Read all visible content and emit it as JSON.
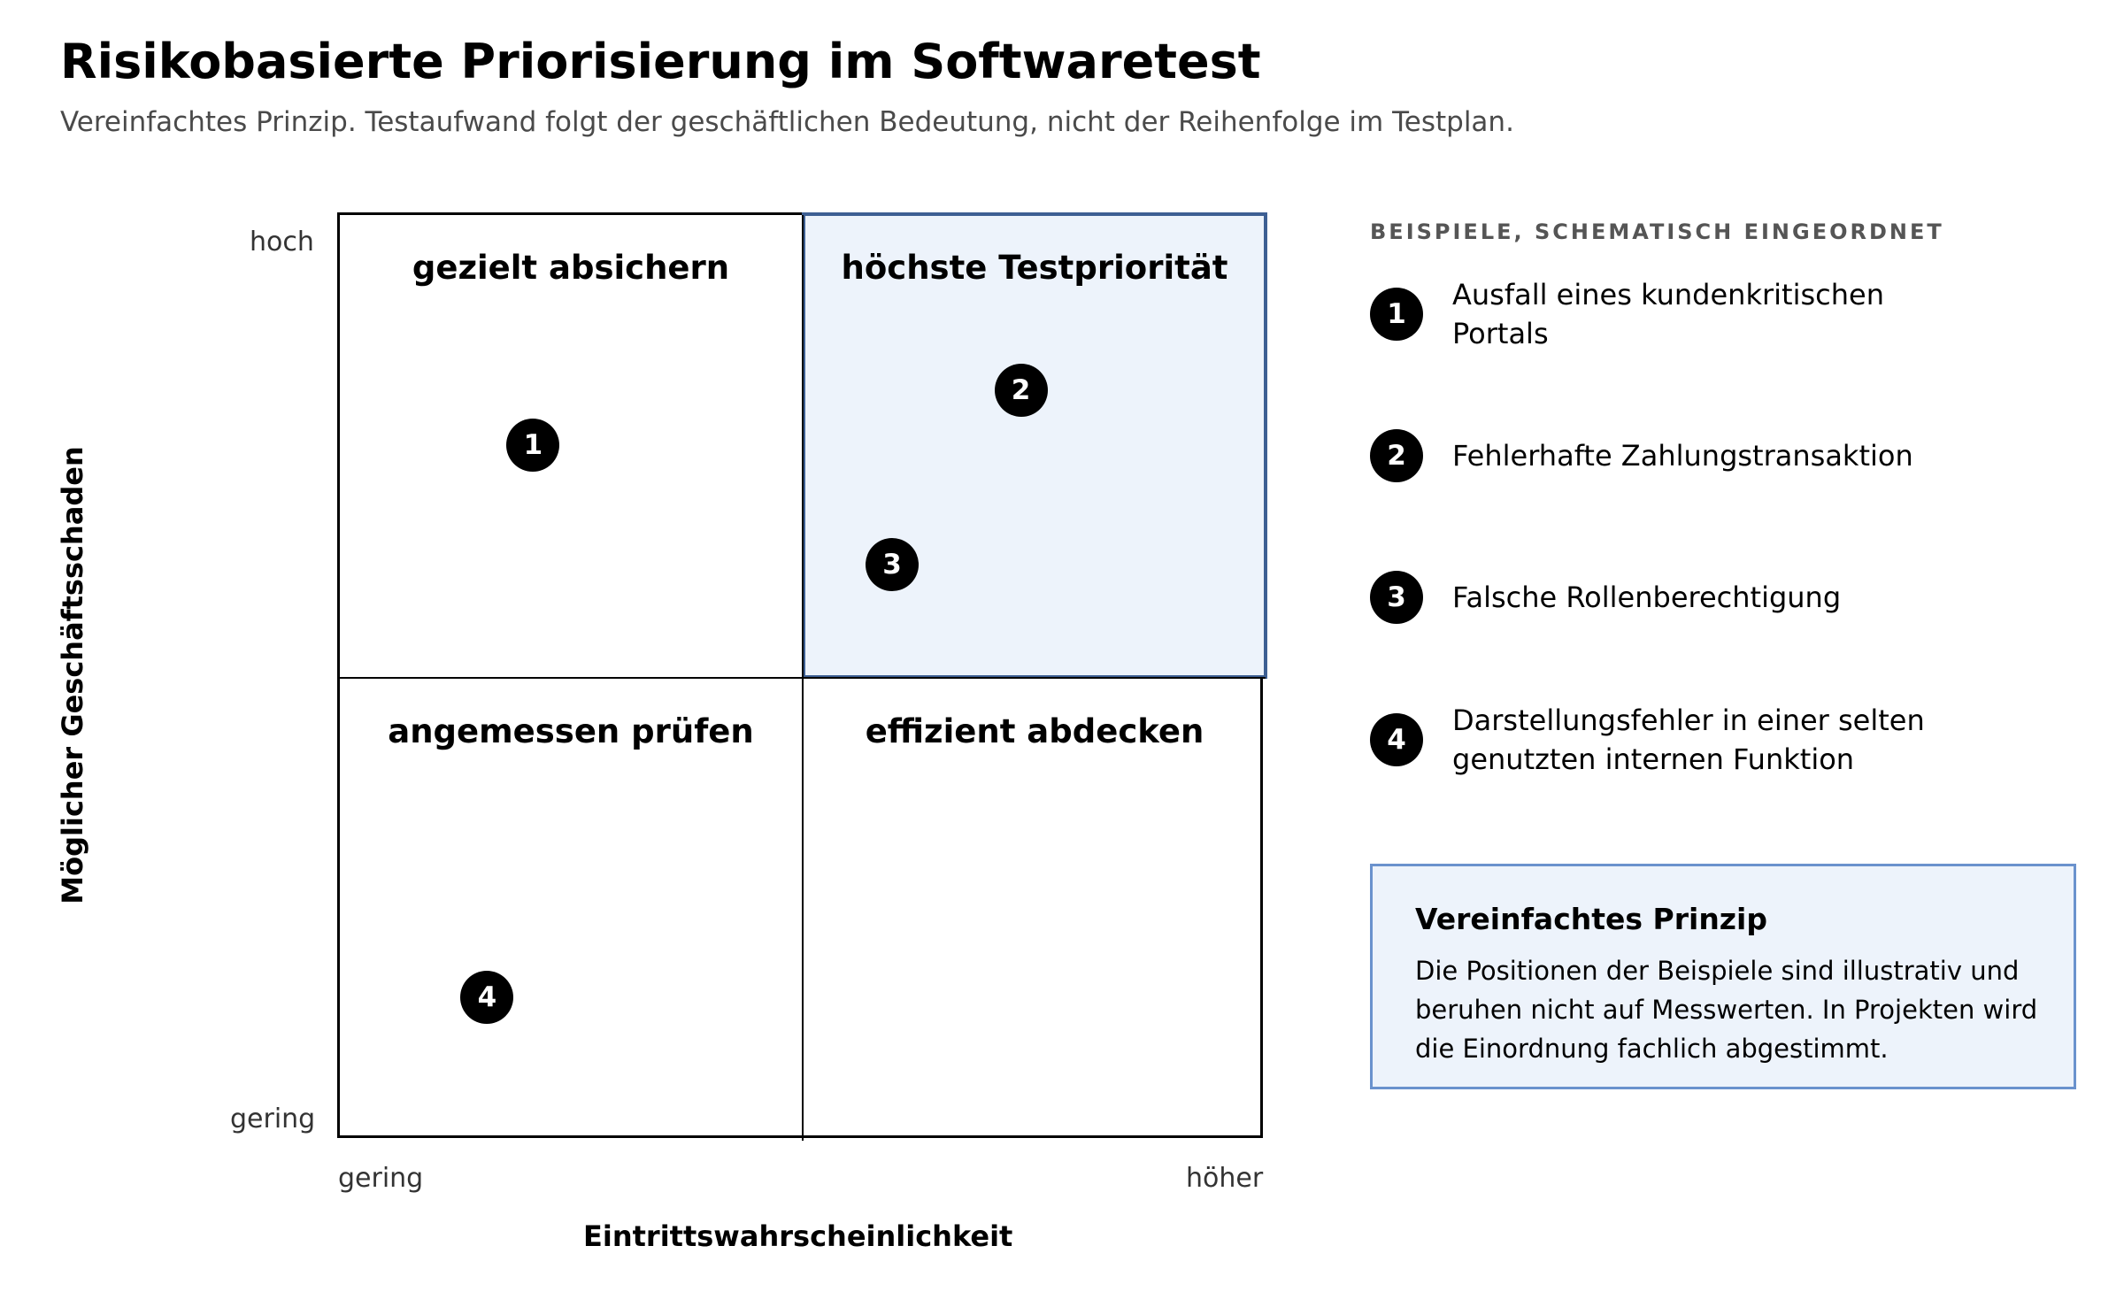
{
  "title": "Risikobasierte Priorisierung im Softwaretest",
  "subtitle": "Vereinfachtes Prinzip. Testaufwand folgt der geschäftlichen Bedeutung, nicht der Reihenfolge im Testplan.",
  "matrix": {
    "quadrants": {
      "top_left": "gezielt absichern",
      "top_right": "höchste Testpriorität",
      "bottom_left": "angemessen prüfen",
      "bottom_right": "effizient abdecken"
    },
    "highlighted_quadrant": "top_right",
    "highlight_fill": "#edf3fb",
    "highlight_border": "#3d5f93",
    "x_axis": {
      "title": "Eintrittswahrscheinlichkeit",
      "low": "gering",
      "high": "höher"
    },
    "y_axis": {
      "title": "Möglicher Geschäftsschaden",
      "low": "gering",
      "high": "hoch"
    },
    "points": [
      {
        "id": "1",
        "likelihood": 0.21,
        "impact": 0.75
      },
      {
        "id": "2",
        "likelihood": 0.74,
        "impact": 0.81
      },
      {
        "id": "3",
        "likelihood": 0.6,
        "impact": 0.62
      },
      {
        "id": "4",
        "likelihood": 0.16,
        "impact": 0.15
      }
    ]
  },
  "examples": {
    "heading": "BEISPIELE, SCHEMATISCH EINGEORDNET",
    "items": [
      {
        "id": "1",
        "text": "Ausfall eines kundenkritischen Portals"
      },
      {
        "id": "2",
        "text": "Fehlerhafte Zahlungstransaktion"
      },
      {
        "id": "3",
        "text": "Falsche Rollenberechtigung"
      },
      {
        "id": "4",
        "text": "Darstellungsfehler in einer selten genutzten internen Funktion"
      }
    ]
  },
  "note": {
    "title": "Vereinfachtes Prinzip",
    "text": "Die Positionen der Beispiele sind illustrativ und beruhen nicht auf Messwerten. In Projekten wird die Einordnung fachlich abgestimmt.",
    "fill": "#edf3fb",
    "border": "#6a92cd"
  }
}
